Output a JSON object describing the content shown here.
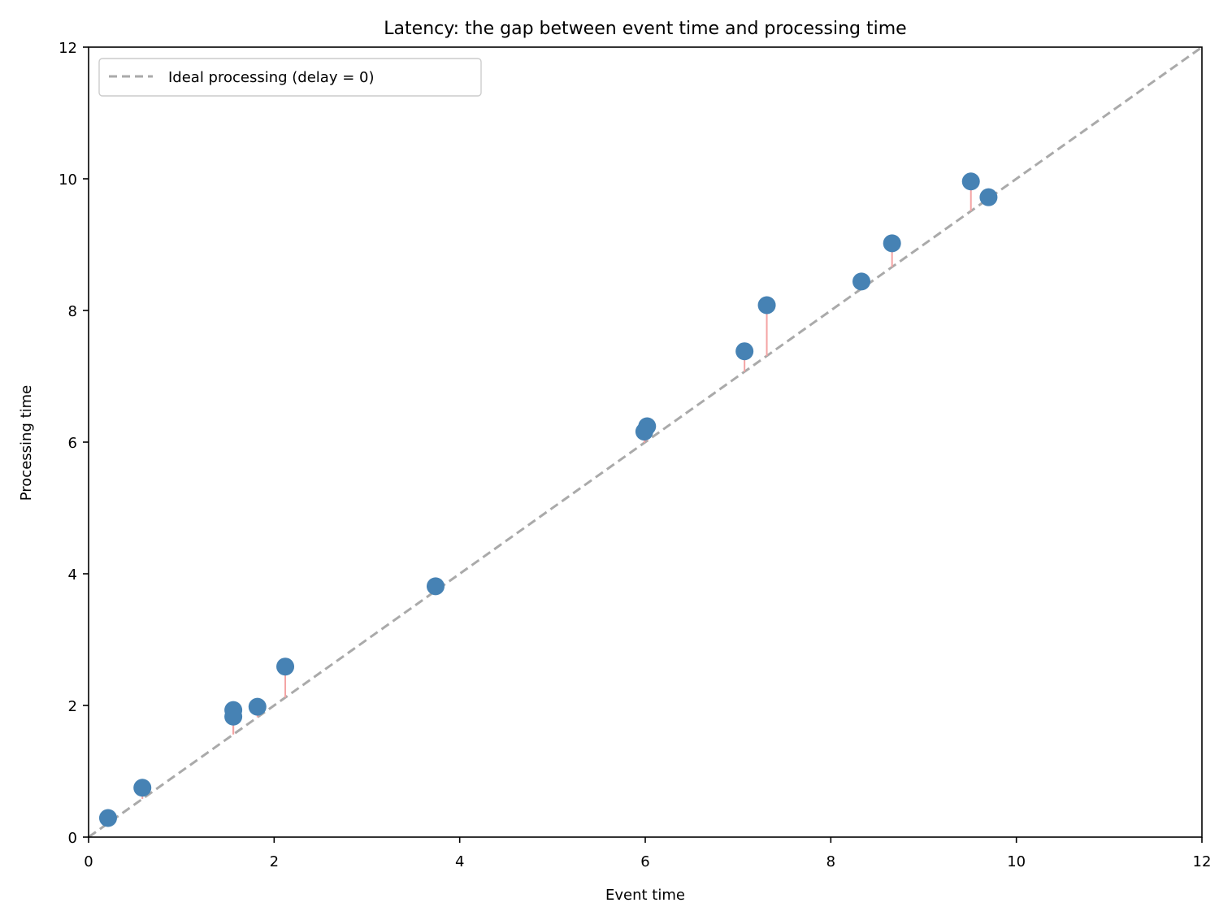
{
  "chart_data": {
    "type": "scatter",
    "title": "Latency: the gap between event time and processing time",
    "xlabel": "Event time",
    "ylabel": "Processing time",
    "xlim": [
      0,
      12
    ],
    "ylim": [
      0,
      12
    ],
    "xticks": [
      0,
      2,
      4,
      6,
      8,
      10,
      12
    ],
    "yticks": [
      0,
      2,
      4,
      6,
      8,
      10,
      12
    ],
    "grid": false,
    "legend_position": "top-left",
    "reference_line": {
      "name": "Ideal processing (delay = 0)",
      "from": [
        0,
        0
      ],
      "to": [
        12,
        12
      ],
      "color": "#aaaaaa",
      "style": "dashed"
    },
    "series": [
      {
        "marker_color": "#4682b4",
        "delay_line_color": "#f4a3a3",
        "points": [
          {
            "x": 0.21,
            "y": 0.29
          },
          {
            "x": 0.58,
            "y": 0.75
          },
          {
            "x": 1.56,
            "y": 1.83
          },
          {
            "x": 1.56,
            "y": 1.93
          },
          {
            "x": 1.82,
            "y": 1.98
          },
          {
            "x": 2.12,
            "y": 2.59
          },
          {
            "x": 3.74,
            "y": 3.81
          },
          {
            "x": 5.99,
            "y": 6.16
          },
          {
            "x": 6.02,
            "y": 6.24
          },
          {
            "x": 7.07,
            "y": 7.38
          },
          {
            "x": 7.31,
            "y": 8.08
          },
          {
            "x": 8.33,
            "y": 8.44
          },
          {
            "x": 8.66,
            "y": 9.02
          },
          {
            "x": 9.51,
            "y": 9.96
          },
          {
            "x": 9.7,
            "y": 9.72
          }
        ]
      }
    ]
  }
}
